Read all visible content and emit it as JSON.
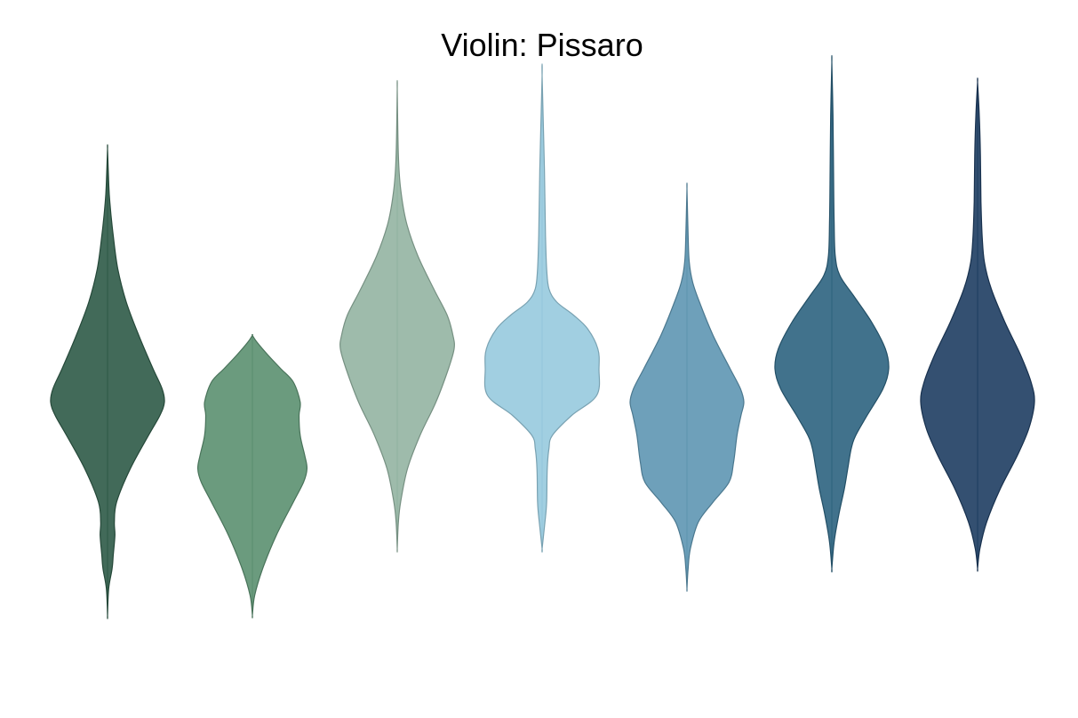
{
  "chart_data": {
    "type": "violin",
    "title": "Violin: Pissaro",
    "xlabel": "",
    "ylabel": "",
    "ylim": [
      0,
      1
    ],
    "grid": false,
    "axes_visible": false,
    "violins": [
      {
        "color": "#2e5a47",
        "y_min": 0.13,
        "y_max": 0.83,
        "profile": [
          [
            0.13,
            0.0
          ],
          [
            0.17,
            0.02
          ],
          [
            0.2,
            0.08
          ],
          [
            0.22,
            0.1
          ],
          [
            0.25,
            0.13
          ],
          [
            0.27,
            0.12
          ],
          [
            0.3,
            0.16
          ],
          [
            0.35,
            0.4
          ],
          [
            0.4,
            0.72
          ],
          [
            0.43,
            0.92
          ],
          [
            0.45,
            1.0
          ],
          [
            0.47,
            0.96
          ],
          [
            0.5,
            0.8
          ],
          [
            0.55,
            0.55
          ],
          [
            0.6,
            0.33
          ],
          [
            0.65,
            0.18
          ],
          [
            0.7,
            0.1
          ],
          [
            0.75,
            0.04
          ],
          [
            0.78,
            0.02
          ],
          [
            0.83,
            0.0
          ]
        ]
      },
      {
        "color": "#5b9070",
        "y_min": 0.13,
        "y_max": 0.55,
        "profile": [
          [
            0.13,
            0.0
          ],
          [
            0.16,
            0.04
          ],
          [
            0.2,
            0.18
          ],
          [
            0.25,
            0.42
          ],
          [
            0.3,
            0.72
          ],
          [
            0.33,
            0.9
          ],
          [
            0.35,
            0.96
          ],
          [
            0.37,
            0.92
          ],
          [
            0.4,
            0.84
          ],
          [
            0.43,
            0.82
          ],
          [
            0.45,
            0.84
          ],
          [
            0.48,
            0.72
          ],
          [
            0.5,
            0.5
          ],
          [
            0.52,
            0.28
          ],
          [
            0.54,
            0.08
          ],
          [
            0.55,
            0.0
          ]
        ]
      },
      {
        "color": "#93b4a2",
        "y_min": 0.23,
        "y_max": 0.92,
        "profile": [
          [
            0.23,
            0.0
          ],
          [
            0.27,
            0.02
          ],
          [
            0.3,
            0.06
          ],
          [
            0.35,
            0.18
          ],
          [
            0.4,
            0.4
          ],
          [
            0.45,
            0.68
          ],
          [
            0.5,
            0.9
          ],
          [
            0.53,
            1.0
          ],
          [
            0.55,
            0.98
          ],
          [
            0.58,
            0.88
          ],
          [
            0.62,
            0.64
          ],
          [
            0.67,
            0.36
          ],
          [
            0.72,
            0.16
          ],
          [
            0.77,
            0.06
          ],
          [
            0.82,
            0.02
          ],
          [
            0.92,
            0.0
          ]
        ]
      },
      {
        "color": "#97cade",
        "y_min": 0.23,
        "y_max": 0.94,
        "profile": [
          [
            0.23,
            0.0
          ],
          [
            0.27,
            0.05
          ],
          [
            0.3,
            0.08
          ],
          [
            0.35,
            0.09
          ],
          [
            0.38,
            0.12
          ],
          [
            0.4,
            0.18
          ],
          [
            0.43,
            0.52
          ],
          [
            0.46,
            0.96
          ],
          [
            0.5,
            1.0
          ],
          [
            0.53,
            0.98
          ],
          [
            0.56,
            0.8
          ],
          [
            0.58,
            0.56
          ],
          [
            0.6,
            0.26
          ],
          [
            0.62,
            0.12
          ],
          [
            0.65,
            0.08
          ],
          [
            0.7,
            0.06
          ],
          [
            0.8,
            0.04
          ],
          [
            0.94,
            0.0
          ]
        ]
      },
      {
        "color": "#5e96b3",
        "y_min": 0.17,
        "y_max": 0.77,
        "profile": [
          [
            0.17,
            0.0
          ],
          [
            0.2,
            0.02
          ],
          [
            0.23,
            0.06
          ],
          [
            0.27,
            0.2
          ],
          [
            0.3,
            0.46
          ],
          [
            0.33,
            0.74
          ],
          [
            0.36,
            0.82
          ],
          [
            0.4,
            0.88
          ],
          [
            0.43,
            0.95
          ],
          [
            0.45,
            1.0
          ],
          [
            0.47,
            0.94
          ],
          [
            0.5,
            0.76
          ],
          [
            0.55,
            0.46
          ],
          [
            0.6,
            0.22
          ],
          [
            0.63,
            0.1
          ],
          [
            0.66,
            0.04
          ],
          [
            0.7,
            0.02
          ],
          [
            0.77,
            0.0
          ]
        ]
      },
      {
        "color": "#2c6380",
        "y_min": 0.2,
        "y_max": 0.96,
        "profile": [
          [
            0.2,
            0.0
          ],
          [
            0.24,
            0.04
          ],
          [
            0.28,
            0.12
          ],
          [
            0.32,
            0.22
          ],
          [
            0.35,
            0.28
          ],
          [
            0.38,
            0.34
          ],
          [
            0.4,
            0.42
          ],
          [
            0.43,
            0.62
          ],
          [
            0.47,
            0.9
          ],
          [
            0.5,
            1.0
          ],
          [
            0.53,
            0.94
          ],
          [
            0.57,
            0.7
          ],
          [
            0.61,
            0.38
          ],
          [
            0.64,
            0.14
          ],
          [
            0.67,
            0.06
          ],
          [
            0.72,
            0.04
          ],
          [
            0.8,
            0.03
          ],
          [
            0.88,
            0.02
          ],
          [
            0.96,
            0.0
          ]
        ]
      },
      {
        "color": "#1e3d62",
        "y_min": 0.2,
        "y_max": 0.93,
        "profile": [
          [
            0.2,
            0.0
          ],
          [
            0.23,
            0.04
          ],
          [
            0.27,
            0.16
          ],
          [
            0.32,
            0.4
          ],
          [
            0.37,
            0.7
          ],
          [
            0.41,
            0.9
          ],
          [
            0.45,
            1.0
          ],
          [
            0.48,
            0.94
          ],
          [
            0.52,
            0.76
          ],
          [
            0.57,
            0.48
          ],
          [
            0.62,
            0.24
          ],
          [
            0.66,
            0.12
          ],
          [
            0.7,
            0.08
          ],
          [
            0.75,
            0.06
          ],
          [
            0.82,
            0.05
          ],
          [
            0.88,
            0.03
          ],
          [
            0.93,
            0.0
          ]
        ]
      }
    ]
  }
}
